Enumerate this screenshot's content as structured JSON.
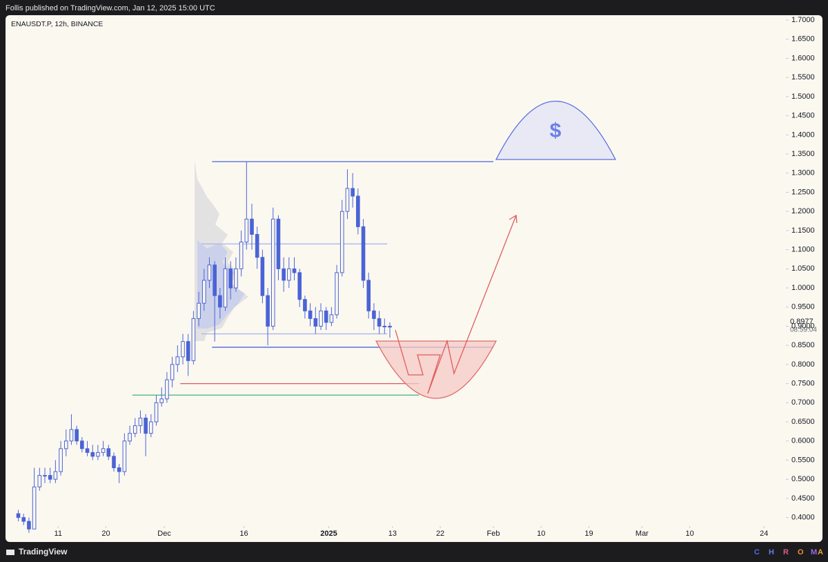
{
  "header": {
    "published": "Follis published on TradingView.com, Jan 12, 2025 15:00 UTC"
  },
  "footer": {
    "brand": "TradingView",
    "tag": [
      "C",
      "H",
      "R",
      "O",
      "M",
      "A"
    ]
  },
  "chart_data": {
    "type": "candlestick",
    "title": "ENAUSDT.P, 12h, BINANCE",
    "color": "#4a63d6",
    "x": [
      "2024-11-03",
      "2024-11-04",
      "2024-11-05",
      "2024-11-06",
      "2024-11-07",
      "2024-11-08",
      "2024-11-09",
      "2024-11-10",
      "2024-11-11",
      "2024-11-12",
      "2024-11-13",
      "2024-11-14",
      "2024-11-15",
      "2024-11-16",
      "2024-11-17",
      "2024-11-18",
      "2024-11-19",
      "2024-11-20",
      "2024-11-21",
      "2024-11-22",
      "2024-11-23",
      "2024-11-24",
      "2024-11-25",
      "2024-11-26",
      "2024-11-27",
      "2024-11-28",
      "2024-11-29",
      "2024-11-30",
      "2024-12-01",
      "2024-12-02",
      "2024-12-03",
      "2024-12-04",
      "2024-12-05",
      "2024-12-06",
      "2024-12-07",
      "2024-12-08",
      "2024-12-09",
      "2024-12-10",
      "2024-12-11",
      "2024-12-12",
      "2024-12-13",
      "2024-12-14",
      "2024-12-15",
      "2024-12-16",
      "2024-12-17",
      "2024-12-18",
      "2024-12-19",
      "2024-12-20",
      "2024-12-21",
      "2024-12-22",
      "2024-12-23",
      "2024-12-24",
      "2024-12-25",
      "2024-12-26",
      "2024-12-27",
      "2024-12-28",
      "2024-12-29",
      "2024-12-30",
      "2024-12-31",
      "2025-01-01",
      "2025-01-02",
      "2025-01-03",
      "2025-01-04",
      "2025-01-05",
      "2025-01-06",
      "2025-01-07",
      "2025-01-08",
      "2025-01-09",
      "2025-01-10",
      "2025-01-11",
      "2025-01-12"
    ],
    "open": [
      0.41,
      0.4,
      0.39,
      0.37,
      0.48,
      0.51,
      0.51,
      0.5,
      0.52,
      0.58,
      0.6,
      0.63,
      0.6,
      0.58,
      0.57,
      0.56,
      0.57,
      0.58,
      0.56,
      0.53,
      0.52,
      0.6,
      0.62,
      0.64,
      0.66,
      0.62,
      0.65,
      0.7,
      0.71,
      0.76,
      0.8,
      0.82,
      0.86,
      0.81,
      0.92,
      0.96,
      1.02,
      1.06,
      0.98,
      0.95,
      1.05,
      1.0,
      1.05,
      1.12,
      1.18,
      1.14,
      1.08,
      0.98,
      0.9,
      1.18,
      1.05,
      1.02,
      1.05,
      1.04,
      0.97,
      0.94,
      0.92,
      0.9,
      0.94,
      0.91,
      0.93,
      1.04,
      1.2,
      1.26,
      1.24,
      1.16,
      1.02,
      0.94,
      0.92,
      0.9,
      0.9
    ],
    "high": [
      0.42,
      0.41,
      0.4,
      0.53,
      0.53,
      0.53,
      0.53,
      0.55,
      0.6,
      0.63,
      0.67,
      0.64,
      0.61,
      0.6,
      0.59,
      0.59,
      0.6,
      0.59,
      0.57,
      0.54,
      0.62,
      0.64,
      0.66,
      0.68,
      0.67,
      0.67,
      0.72,
      0.74,
      0.78,
      0.82,
      0.85,
      0.88,
      0.88,
      0.94,
      0.99,
      1.05,
      1.08,
      1.07,
      1.0,
      1.08,
      1.07,
      1.08,
      1.15,
      1.33,
      1.22,
      1.16,
      1.1,
      1.0,
      1.21,
      1.19,
      1.08,
      1.08,
      1.08,
      1.05,
      0.98,
      0.96,
      0.95,
      0.96,
      0.95,
      0.95,
      1.06,
      1.23,
      1.31,
      1.3,
      1.26,
      1.18,
      1.04,
      0.96,
      0.94,
      0.92,
      0.91
    ],
    "low": [
      0.39,
      0.38,
      0.36,
      0.37,
      0.47,
      0.49,
      0.49,
      0.49,
      0.51,
      0.56,
      0.59,
      0.59,
      0.57,
      0.56,
      0.55,
      0.55,
      0.56,
      0.55,
      0.52,
      0.49,
      0.51,
      0.59,
      0.61,
      0.62,
      0.56,
      0.61,
      0.64,
      0.69,
      0.7,
      0.74,
      0.78,
      0.8,
      0.77,
      0.8,
      0.9,
      0.94,
      1.0,
      0.86,
      0.92,
      0.94,
      0.97,
      0.99,
      1.03,
      1.1,
      1.1,
      1.05,
      0.96,
      0.85,
      0.89,
      1.02,
      0.99,
      1.0,
      1.02,
      0.95,
      0.92,
      0.9,
      0.88,
      0.89,
      0.89,
      0.9,
      0.92,
      1.03,
      1.18,
      1.21,
      1.14,
      1.0,
      0.92,
      0.89,
      0.88,
      0.88,
      0.87
    ],
    "close": [
      0.4,
      0.39,
      0.37,
      0.48,
      0.51,
      0.51,
      0.5,
      0.52,
      0.58,
      0.6,
      0.63,
      0.6,
      0.58,
      0.57,
      0.56,
      0.57,
      0.58,
      0.56,
      0.53,
      0.52,
      0.6,
      0.62,
      0.64,
      0.66,
      0.62,
      0.65,
      0.7,
      0.71,
      0.76,
      0.8,
      0.82,
      0.86,
      0.81,
      0.92,
      0.96,
      1.02,
      1.06,
      0.98,
      0.95,
      1.05,
      1.0,
      1.05,
      1.12,
      1.18,
      1.14,
      1.08,
      0.98,
      0.9,
      1.18,
      1.05,
      1.02,
      1.05,
      1.04,
      0.97,
      0.94,
      0.92,
      0.9,
      0.94,
      0.91,
      0.93,
      1.04,
      1.2,
      1.26,
      1.24,
      1.16,
      1.02,
      0.94,
      0.92,
      0.9,
      0.9,
      0.8977
    ],
    "last_price": 0.8977,
    "countdown": "08:59:04",
    "levels": [
      {
        "price": 1.33,
        "start": "2024-12-10",
        "end": "2025-02-01",
        "color": "#4a63d6"
      },
      {
        "price": 0.845,
        "start": "2024-12-10",
        "end": "2025-02-01",
        "color": "#4a63d6"
      },
      {
        "price": 1.115,
        "start": "2024-12-08",
        "end": "2025-01-12",
        "color": "#aab6ee"
      },
      {
        "price": 0.88,
        "start": "2024-12-08",
        "end": "2025-01-12",
        "color": "#aab6ee"
      },
      {
        "price": 0.75,
        "start": "2024-12-04",
        "end": "2025-01-18",
        "color": "#e0575b"
      },
      {
        "price": 0.72,
        "start": "2024-11-25",
        "end": "2025-01-18",
        "color": "#3fb37f"
      }
    ],
    "annotation": "$",
    "xlim": [
      "2024-11-02",
      "2025-03-25"
    ],
    "xticks": [
      {
        "value": "2024-11-11",
        "label": "11"
      },
      {
        "value": "2024-11-20",
        "label": "20"
      },
      {
        "value": "2024-12-01",
        "label": "Dec"
      },
      {
        "value": "2024-12-16",
        "label": "16"
      },
      {
        "value": "2025-01-01",
        "label": "2025"
      },
      {
        "value": "2025-01-13",
        "label": "13"
      },
      {
        "value": "2025-01-22",
        "label": "22"
      },
      {
        "value": "2025-02-01",
        "label": "Feb"
      },
      {
        "value": "2025-02-10",
        "label": "10"
      },
      {
        "value": "2025-02-19",
        "label": "19"
      },
      {
        "value": "2025-03-01",
        "label": "Mar"
      },
      {
        "value": "2025-03-10",
        "label": "10"
      },
      {
        "value": "2025-03-24",
        "label": "24"
      }
    ],
    "ylim": [
      0.3812,
      1.7128
    ],
    "yticks": [
      {
        "value": 0.4,
        "label": "0.4000"
      },
      {
        "value": 0.45,
        "label": "0.4500"
      },
      {
        "value": 0.5,
        "label": "0.5000"
      },
      {
        "value": 0.55,
        "label": "0.5500"
      },
      {
        "value": 0.6,
        "label": "0.6000"
      },
      {
        "value": 0.65,
        "label": "0.6500"
      },
      {
        "value": 0.7,
        "label": "0.7000"
      },
      {
        "value": 0.75,
        "label": "0.7500"
      },
      {
        "value": 0.8,
        "label": "0.8000"
      },
      {
        "value": 0.85,
        "label": "0.8500"
      },
      {
        "value": 0.9,
        "label": "0.9000"
      },
      {
        "value": 0.95,
        "label": "0.9500"
      },
      {
        "value": 1.0,
        "label": "1.0000"
      },
      {
        "value": 1.05,
        "label": "1.0500"
      },
      {
        "value": 1.1,
        "label": "1.1000"
      },
      {
        "value": 1.15,
        "label": "1.1500"
      },
      {
        "value": 1.2,
        "label": "1.2000"
      },
      {
        "value": 1.25,
        "label": "1.2500"
      },
      {
        "value": 1.3,
        "label": "1.3000"
      },
      {
        "value": 1.35,
        "label": "1.3500"
      },
      {
        "value": 1.4,
        "label": "1.4000"
      },
      {
        "value": 1.45,
        "label": "1.4500"
      },
      {
        "value": 1.5,
        "label": "1.5000"
      },
      {
        "value": 1.55,
        "label": "1.5500"
      },
      {
        "value": 1.6,
        "label": "1.6000"
      },
      {
        "value": 1.65,
        "label": "1.6500"
      },
      {
        "value": 1.7,
        "label": "1.7000"
      }
    ]
  }
}
